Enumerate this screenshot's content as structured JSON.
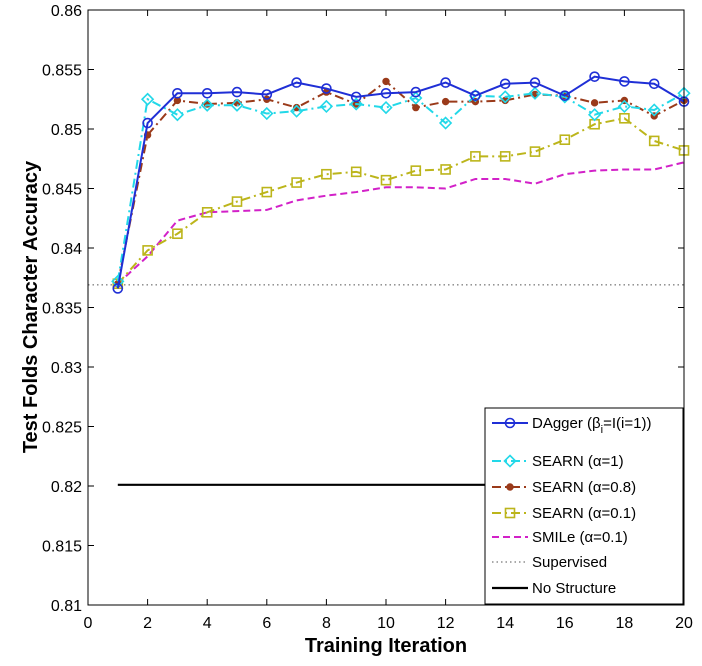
{
  "chart_data": {
    "type": "line",
    "xlabel": "Training Iteration",
    "ylabel": "Test Folds Character Accuracy",
    "xlim": [
      0,
      20
    ],
    "ylim": [
      0.81,
      0.86
    ],
    "xticks": [
      0,
      2,
      4,
      6,
      8,
      10,
      12,
      14,
      16,
      18,
      20
    ],
    "xtick_labels": [
      "0",
      "2",
      "4",
      "6",
      "8",
      "10",
      "12",
      "14",
      "16",
      "18",
      "20"
    ],
    "yticks": [
      0.81,
      0.815,
      0.82,
      0.825,
      0.83,
      0.835,
      0.84,
      0.845,
      0.85,
      0.855,
      0.86
    ],
    "ytick_labels": [
      "0.81",
      "0.815",
      "0.82",
      "0.825",
      "0.83",
      "0.835",
      "0.84",
      "0.845",
      "0.85",
      "0.855",
      "0.86"
    ],
    "legend_position": "bottom-right",
    "series": [
      {
        "name": "DAgger (βi=I(i=1))",
        "legend_main": "DAgger (β",
        "legend_sub": "i",
        "legend_tail": "=I(i=1))",
        "color": "#1f2fd6",
        "dash": "solid",
        "marker": "circle",
        "x": [
          1,
          2,
          3,
          4,
          5,
          6,
          7,
          8,
          9,
          10,
          11,
          12,
          13,
          14,
          15,
          16,
          17,
          18,
          19,
          20
        ],
        "y": [
          0.8366,
          0.8505,
          0.853,
          0.853,
          0.8531,
          0.8529,
          0.8539,
          0.8534,
          0.8527,
          0.853,
          0.8531,
          0.8539,
          0.8528,
          0.8538,
          0.8539,
          0.8528,
          0.8544,
          0.854,
          0.8538,
          0.8523
        ]
      },
      {
        "name": "SEARN (α=1)",
        "legend_main": "SEARN (α=1)",
        "color": "#22d8e8",
        "dash": "dashdot",
        "marker": "diamond",
        "x": [
          1,
          2,
          3,
          4,
          5,
          6,
          7,
          8,
          9,
          10,
          11,
          12,
          13,
          14,
          15,
          16,
          17,
          18,
          19,
          20
        ],
        "y": [
          0.8372,
          0.8525,
          0.8512,
          0.852,
          0.852,
          0.8513,
          0.8515,
          0.8519,
          0.8521,
          0.8518,
          0.8526,
          0.8505,
          0.8528,
          0.8527,
          0.853,
          0.8527,
          0.8512,
          0.8519,
          0.8516,
          0.853
        ]
      },
      {
        "name": "SEARN (α=0.8)",
        "legend_main": "SEARN (α=0.8)",
        "color": "#9a3a1a",
        "dash": "dashdot",
        "marker": "dot",
        "x": [
          1,
          2,
          3,
          4,
          5,
          6,
          7,
          8,
          9,
          10,
          11,
          12,
          13,
          14,
          15,
          16,
          17,
          18,
          19,
          20
        ],
        "y": [
          0.837,
          0.8495,
          0.8524,
          0.8521,
          0.8522,
          0.8525,
          0.8518,
          0.8531,
          0.8521,
          0.854,
          0.8518,
          0.8523,
          0.8523,
          0.8524,
          0.8529,
          0.8528,
          0.8522,
          0.8524,
          0.8511,
          0.8524
        ]
      },
      {
        "name": "SEARN (α=0.1)",
        "legend_main": "SEARN (α=0.1)",
        "color": "#bcb51b",
        "dash": "dashdot",
        "marker": "square",
        "x": [
          1,
          2,
          3,
          4,
          5,
          6,
          7,
          8,
          9,
          10,
          11,
          12,
          13,
          14,
          15,
          16,
          17,
          18,
          19,
          20
        ],
        "y": [
          0.837,
          0.8398,
          0.8412,
          0.843,
          0.8439,
          0.8447,
          0.8455,
          0.8462,
          0.8464,
          0.8457,
          0.8465,
          0.8466,
          0.8477,
          0.8477,
          0.8481,
          0.8491,
          0.8504,
          0.8509,
          0.849,
          0.8482
        ]
      },
      {
        "name": "SMILe (α=0.1)",
        "legend_main": "SMILe (α=0.1)",
        "color": "#d221c8",
        "dash": "dashed",
        "marker": "none",
        "x": [
          1,
          2,
          3,
          4,
          5,
          6,
          7,
          8,
          9,
          10,
          11,
          12,
          13,
          14,
          15,
          16,
          17,
          18,
          19,
          20
        ],
        "y": [
          0.837,
          0.8393,
          0.8423,
          0.843,
          0.8431,
          0.8432,
          0.844,
          0.8444,
          0.8447,
          0.8451,
          0.8451,
          0.845,
          0.8458,
          0.8458,
          0.8454,
          0.8462,
          0.8465,
          0.8466,
          0.8466,
          0.8472
        ]
      },
      {
        "name": "Supervised",
        "legend_main": "Supervised",
        "color": "#555555",
        "dash": "dotted",
        "marker": "none",
        "x": [
          0,
          20
        ],
        "y": [
          0.8369,
          0.8369
        ]
      },
      {
        "name": "No Structure",
        "legend_main": "No Structure",
        "color": "#000000",
        "dash": "solid",
        "marker": "none",
        "x": [
          1,
          20
        ],
        "y": [
          0.8201,
          0.8201
        ]
      }
    ]
  }
}
